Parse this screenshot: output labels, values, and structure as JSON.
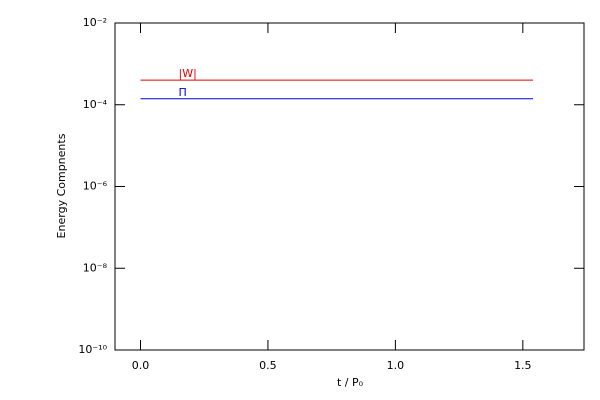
{
  "chart_data": {
    "type": "line",
    "y_label": "Energy Compnents",
    "x_label": "t / P₀",
    "x": [
      0,
      1.54
    ],
    "series": [
      {
        "name": "|W|",
        "color": "#e00000",
        "values": [
          0.0004,
          0.0004
        ]
      },
      {
        "name": "Π",
        "color": "#0000e0",
        "values": [
          0.00014,
          0.00014
        ]
      }
    ],
    "xlim": [
      -0.1,
      1.74
    ],
    "xticks": [
      {
        "value": 0,
        "label": "0.0"
      },
      0.5,
      {
        "value": 1,
        "label": "1.0"
      },
      1.5
    ],
    "ylim": [
      1e-10,
      0.01
    ],
    "yticks": [
      {
        "value": 1e-10,
        "label": "10⁻¹⁰"
      },
      {
        "value": 1e-08,
        "label": "10⁻⁸"
      },
      {
        "value": 1e-06,
        "label": "10⁻⁶"
      },
      {
        "value": 0.0001,
        "label": "10⁻⁴"
      },
      {
        "value": 0.01,
        "label": "10⁻²"
      }
    ],
    "ylog": true,
    "grid": false
  }
}
